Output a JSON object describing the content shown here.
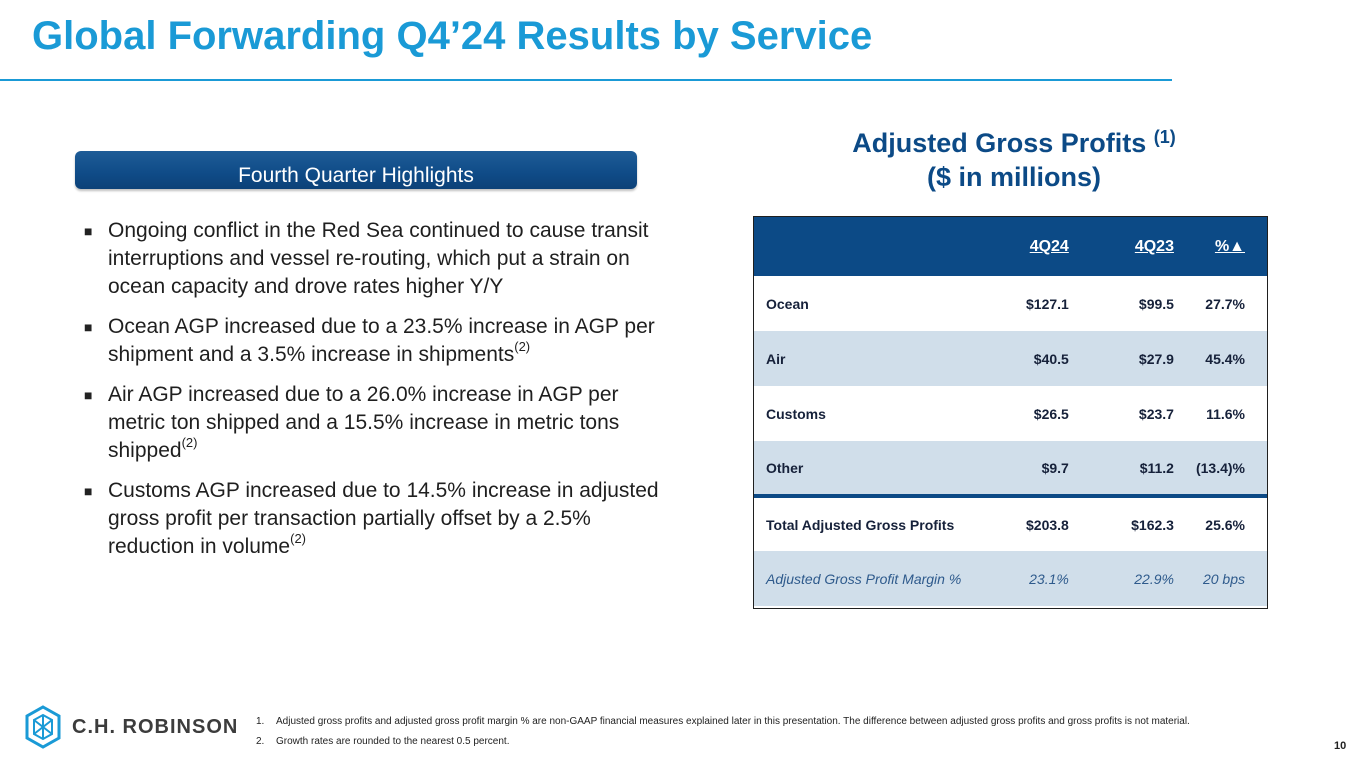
{
  "title": "Global Forwarding Q4’24 Results by Service",
  "banner": "Fourth Quarter Highlights",
  "bullets": [
    {
      "text": "Ongoing conflict in the Red Sea continued to cause transit interruptions and vessel re-routing, which put a strain on ocean capacity and drove rates higher Y/Y",
      "sup": ""
    },
    {
      "text": "Ocean AGP increased due to a 23.5% increase in AGP per shipment and a 3.5% increase in shipments",
      "sup": "(2)"
    },
    {
      "text": "Air AGP increased due to a 26.0% increase in AGP per metric ton shipped and a 15.5% increase in metric tons shipped",
      "sup": "(2)"
    },
    {
      "text": "Customs AGP increased due to 14.5% increase in adjusted gross profit per transaction partially offset by a 2.5% reduction in volume",
      "sup": "(2)"
    }
  ],
  "agp": {
    "title_line1": "Adjusted Gross Profits",
    "title_sup": "(1)",
    "title_line2": "($ in millions)"
  },
  "table": {
    "headers": [
      "",
      "4Q24",
      "4Q23",
      "%▲"
    ],
    "rows": [
      [
        "Ocean",
        "$127.1",
        "$99.5",
        "27.7%"
      ],
      [
        "Air",
        "$40.5",
        "$27.9",
        "45.4%"
      ],
      [
        "Customs",
        "$26.5",
        "$23.7",
        "11.6%"
      ],
      [
        "Other",
        "$9.7",
        "$11.2",
        "(13.4)%"
      ]
    ],
    "total": [
      "Total Adjusted Gross Profits",
      "$203.8",
      "$162.3",
      "25.6%"
    ],
    "margin": [
      "Adjusted Gross Profit Margin %",
      "23.1%",
      "22.9%",
      "20 bps"
    ]
  },
  "logo": {
    "text": "C.H. ROBINSON",
    "color": "#1a9ad6"
  },
  "footnotes": [
    {
      "num": "1.",
      "text": "Adjusted gross profits and adjusted gross profit margin % are non-GAAP financial measures explained later in this presentation. The difference between adjusted gross profits and gross profits is not material."
    },
    {
      "num": "2.",
      "text": "Growth rates are rounded to the nearest 0.5 percent."
    }
  ],
  "page_number": "10",
  "colors": {
    "accent": "#1a9ad6",
    "navy": "#0c4a86",
    "row_shade": "#d0deea"
  }
}
